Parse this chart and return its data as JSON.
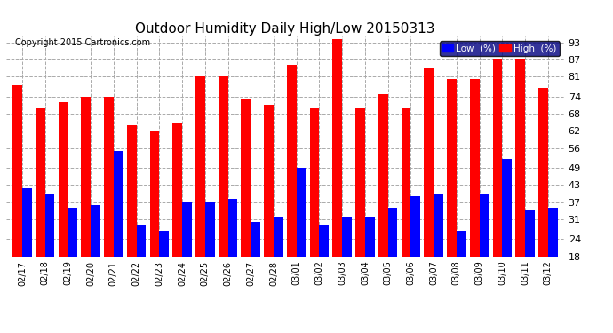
{
  "title": "Outdoor Humidity Daily High/Low 20150313",
  "copyright": "Copyright 2015 Cartronics.com",
  "categories": [
    "02/17",
    "02/18",
    "02/19",
    "02/20",
    "02/21",
    "02/22",
    "02/23",
    "02/24",
    "02/25",
    "02/26",
    "02/27",
    "02/28",
    "03/01",
    "03/02",
    "03/03",
    "03/04",
    "03/05",
    "03/06",
    "03/07",
    "03/08",
    "03/09",
    "03/10",
    "03/11",
    "03/12"
  ],
  "high": [
    78,
    70,
    72,
    74,
    74,
    64,
    62,
    65,
    81,
    81,
    73,
    71,
    85,
    70,
    94,
    70,
    75,
    70,
    84,
    80,
    80,
    87,
    87,
    77
  ],
  "low": [
    42,
    40,
    35,
    36,
    55,
    29,
    27,
    37,
    37,
    38,
    30,
    32,
    49,
    29,
    32,
    32,
    35,
    39,
    40,
    27,
    40,
    52,
    34,
    35
  ],
  "high_color": "#FF0000",
  "low_color": "#0000FF",
  "bg_color": "#FFFFFF",
  "grid_color": "#AAAAAA",
  "ylim_min": 18,
  "ylim_max": 95,
  "yticks": [
    18,
    24,
    31,
    37,
    43,
    49,
    56,
    62,
    68,
    74,
    81,
    87,
    93
  ],
  "bar_width": 0.42,
  "legend_low_label": "Low  (%)",
  "legend_high_label": "High  (%)"
}
